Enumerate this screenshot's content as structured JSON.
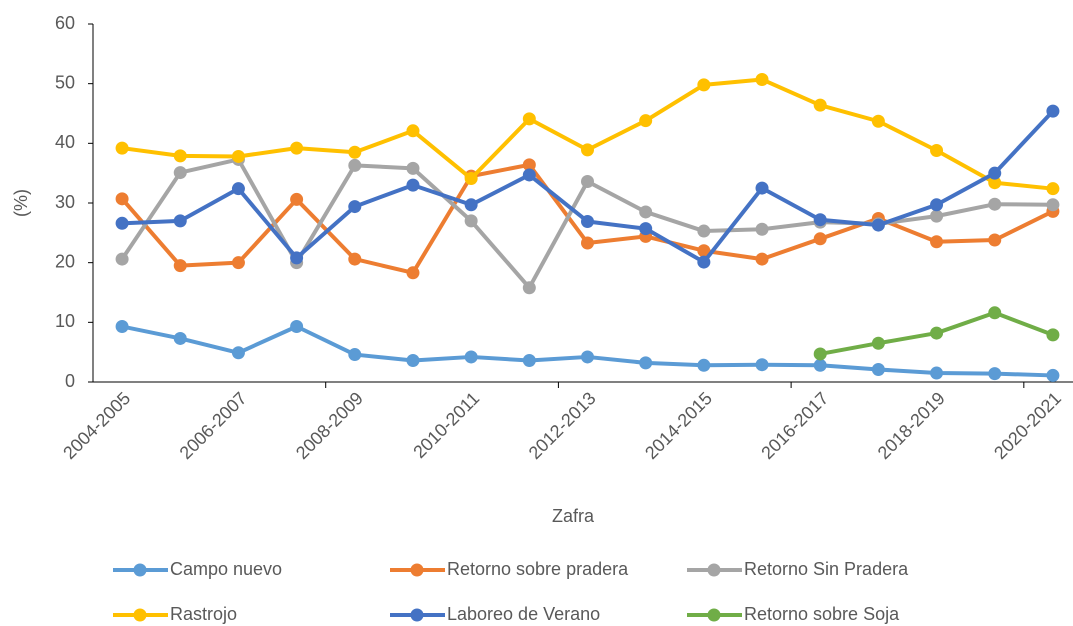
{
  "chart_data": {
    "type": "line",
    "x_label": "Zafra",
    "y_label": "(%)",
    "categories": [
      "2004-2005",
      null,
      "2006-2007",
      null,
      "2008-2009",
      null,
      "2010-2011",
      null,
      "2012-2013",
      null,
      "2014-2015",
      null,
      "2016-2017",
      null,
      "2018-2019",
      null,
      "2020-2021"
    ],
    "ylim": [
      0,
      60
    ],
    "yticks": [
      0,
      10,
      20,
      30,
      40,
      50,
      60
    ],
    "grid": false,
    "series": [
      {
        "name": "Campo nuevo",
        "color": "#5b9bd5",
        "values": [
          9.3,
          7.3,
          4.9,
          9.3,
          4.6,
          3.6,
          4.2,
          3.6,
          4.2,
          3.2,
          2.8,
          2.9,
          2.8,
          2.1,
          1.5,
          1.4,
          1.1
        ]
      },
      {
        "name": "Retorno sobre pradera",
        "color": "#ed7d31",
        "values": [
          30.7,
          19.5,
          20.0,
          30.6,
          20.6,
          18.3,
          34.5,
          36.4,
          23.3,
          24.4,
          22.0,
          20.6,
          24.0,
          27.4,
          23.5,
          23.8,
          28.6
        ]
      },
      {
        "name": "Retorno Sin Pradera",
        "color": "#a5a5a5",
        "values": [
          20.6,
          35.1,
          37.3,
          20.0,
          36.3,
          35.8,
          27.0,
          15.8,
          33.6,
          28.5,
          25.3,
          25.6,
          26.8,
          26.5,
          27.8,
          29.8,
          29.7
        ]
      },
      {
        "name": "Rastrojo",
        "color": "#ffc000",
        "values": [
          39.2,
          37.9,
          37.8,
          39.2,
          38.5,
          42.1,
          34.1,
          44.1,
          38.9,
          43.8,
          49.8,
          50.7,
          46.4,
          43.7,
          38.8,
          33.4,
          32.4
        ]
      },
      {
        "name": "Laboreo de Verano",
        "color": "#4472c4",
        "values": [
          26.6,
          27.0,
          32.4,
          20.8,
          29.4,
          33.0,
          29.7,
          34.7,
          26.9,
          25.7,
          20.1,
          32.5,
          27.2,
          26.3,
          29.7,
          35.0,
          45.4
        ]
      },
      {
        "name": "Retorno sobre Soja",
        "color": "#70ad47",
        "values": [
          null,
          null,
          null,
          null,
          null,
          null,
          null,
          null,
          null,
          null,
          null,
          null,
          4.7,
          6.5,
          8.2,
          11.6,
          7.9
        ]
      }
    ]
  }
}
